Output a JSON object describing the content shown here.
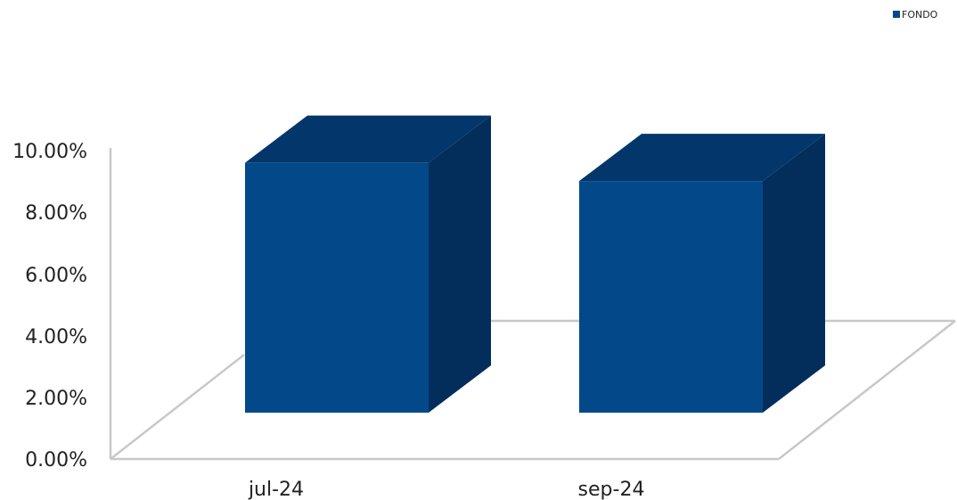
{
  "colors": {
    "bar_front": "#03498a",
    "bar_side": "#032e5b",
    "bar_top": "#03376b",
    "floor": "#c8c8c8"
  },
  "chart_data": {
    "type": "bar",
    "categories": [
      "jul-24",
      "sep-24"
    ],
    "series": [
      {
        "name": "FONDO",
        "values": [
          9.6,
          8.9
        ]
      }
    ],
    "ylim": [
      0,
      10
    ],
    "yticks": [
      "0.00%",
      "2.00%",
      "4.00%",
      "6.00%",
      "8.00%",
      "10.00%"
    ],
    "xlabel": "",
    "ylabel": "",
    "legend": "top-right",
    "grid": false,
    "style": "3d"
  }
}
